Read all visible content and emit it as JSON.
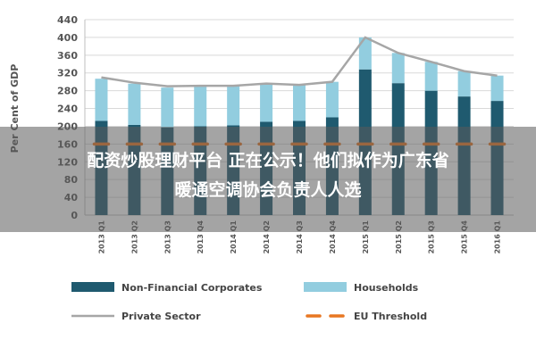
{
  "chart_data": {
    "type": "bar",
    "stacked": true,
    "ylabel": "Per Cent of GDP",
    "ylim": [
      0,
      440
    ],
    "yticks": [
      0,
      40,
      80,
      120,
      160,
      200,
      240,
      280,
      320,
      360,
      400,
      440
    ],
    "grid": true,
    "legend_position": "bottom",
    "categories": [
      "2013 Q1",
      "2013 Q2",
      "2013 Q3",
      "2013 Q4",
      "2014 Q1",
      "2014 Q2",
      "2014 Q3",
      "2014 Q4",
      "2015 Q1",
      "2015 Q2",
      "2015 Q3",
      "2015 Q4",
      "2016 Q1"
    ],
    "series": [
      {
        "name": "Non-Financial Corporates",
        "kind": "bar",
        "color": "#1f5a6f",
        "values": [
          212,
          203,
          197,
          200,
          202,
          210,
          212,
          220,
          328,
          297,
          280,
          267,
          257
        ]
      },
      {
        "name": "Households",
        "kind": "bar",
        "color": "#92cddf",
        "values": [
          95,
          93,
          90,
          91,
          89,
          86,
          81,
          80,
          72,
          68,
          65,
          57,
          57
        ]
      },
      {
        "name": "Private Sector",
        "kind": "line",
        "color": "#a6a6a6",
        "values": [
          310,
          298,
          290,
          291,
          291,
          296,
          293,
          300,
          400,
          365,
          345,
          324,
          314
        ]
      },
      {
        "name": "EU Threshold",
        "kind": "dash",
        "color": "#e87722",
        "values": [
          160,
          160,
          160,
          160,
          160,
          160,
          160,
          160,
          160,
          160,
          160,
          160,
          160
        ]
      }
    ]
  },
  "banner": {
    "line1": "配资炒股理财平台 正在公示！他们拟作为广东省",
    "line2": "暖通空调协会负责人人选"
  }
}
